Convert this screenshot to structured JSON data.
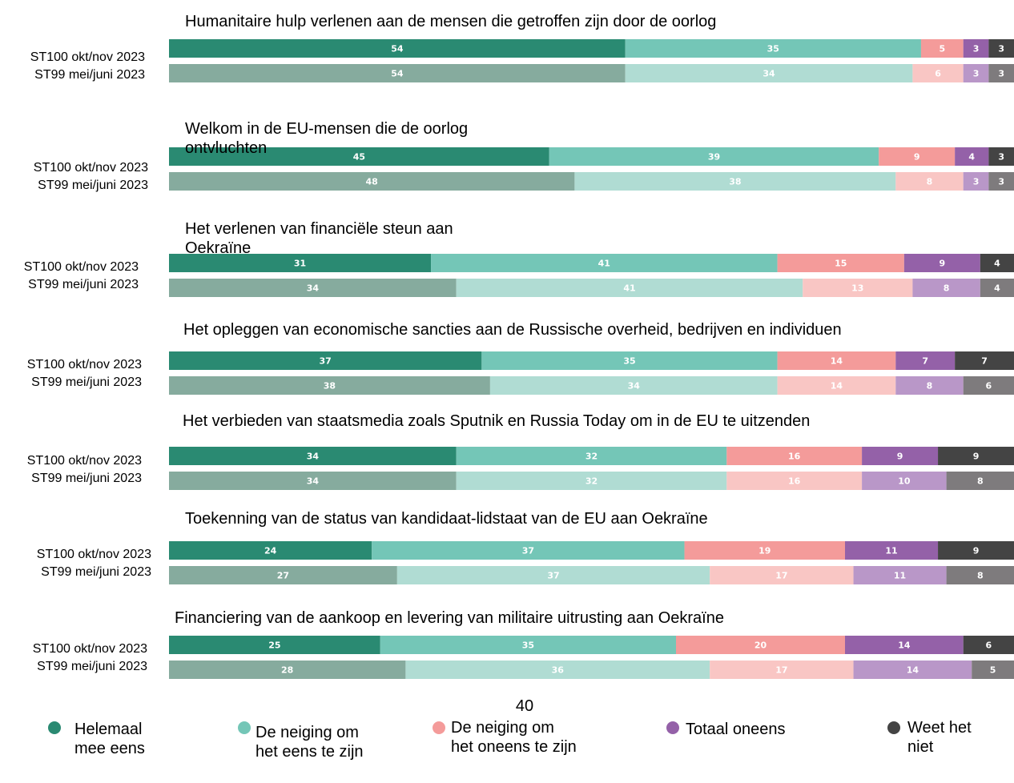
{
  "chart_data": {
    "type": "stacked-bar-groups",
    "groups": [
      "Humanitaire hulp verlenen aan de mensen die getroffen zijn door de oorlog",
      "Welkom in de EU-mensen die de oorlog ontvluchten",
      "Het verlenen van financiële steun aan Oekraïne",
      "Het opleggen van economische sancties aan de Russische overheid, bedrijven en individuen",
      "Het verbieden van staatsmedia zoals Sputnik en Russia Today om in de EU te uitzenden",
      "Toekenning van de status van kandidaat-lidstaat van de EU aan Oekraïne",
      "Financiering van de aankoop en levering van militaire uitrusting aan Oekraïne"
    ],
    "categories": [
      "ST100 okt/nov 2023",
      "ST99 mei/juni 2023",
      "ST100 okt/nov 2023",
      "ST99 mei/juni 2023",
      "ST100 okt/nov 2023",
      "ST99 mei/juni 2023",
      "ST100 okt/nov 2023",
      "ST99 mei/juni 2023",
      "ST100 okt/nov 2023",
      "ST99 mei/juni 2023",
      "ST100 okt/nov 2023",
      "ST99 mei/juni 2023",
      "ST100 okt/nov 2023",
      "ST99 mei/juni 2023"
    ],
    "series": [
      {
        "name": "Helemaal mee eens",
        "color": "#2a8a72",
        "color_previous": "#86ab9e",
        "values": [
          54,
          54,
          45,
          48,
          31,
          34,
          37,
          38,
          34,
          34,
          24,
          27,
          25,
          28
        ]
      },
      {
        "name": "De neiging om het eens te zijn",
        "color": "#74c6b7",
        "color_previous": "#b0dcd3",
        "values": [
          35,
          34,
          39,
          38,
          41,
          41,
          35,
          34,
          32,
          32,
          37,
          37,
          35,
          36
        ]
      },
      {
        "name": "De neiging om het oneens te zijn",
        "color": "#f49b9a",
        "color_previous": "#f9c6c4",
        "values": [
          5,
          6,
          9,
          8,
          15,
          13,
          14,
          14,
          16,
          16,
          19,
          17,
          20,
          17
        ]
      },
      {
        "name": "Totaal oneens",
        "color": "#9461a8",
        "color_previous": "#b997c8",
        "values": [
          3,
          3,
          4,
          3,
          9,
          8,
          7,
          8,
          9,
          10,
          11,
          11,
          14,
          14
        ]
      },
      {
        "name": "Weet het niet",
        "color": "#444444",
        "color_previous": "#7e7b7d",
        "values": [
          3,
          3,
          3,
          3,
          4,
          4,
          7,
          6,
          9,
          8,
          9,
          8,
          6,
          5
        ]
      }
    ],
    "page_number": "40"
  }
}
